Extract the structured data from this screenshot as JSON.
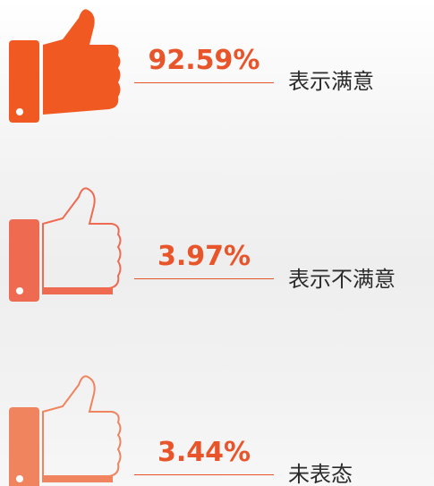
{
  "items": [
    {
      "percent": "92.59%",
      "label": "表示满意"
    },
    {
      "percent": "3.97%",
      "label": "表示不满意"
    },
    {
      "percent": "3.44%",
      "label": "未表态"
    }
  ]
}
